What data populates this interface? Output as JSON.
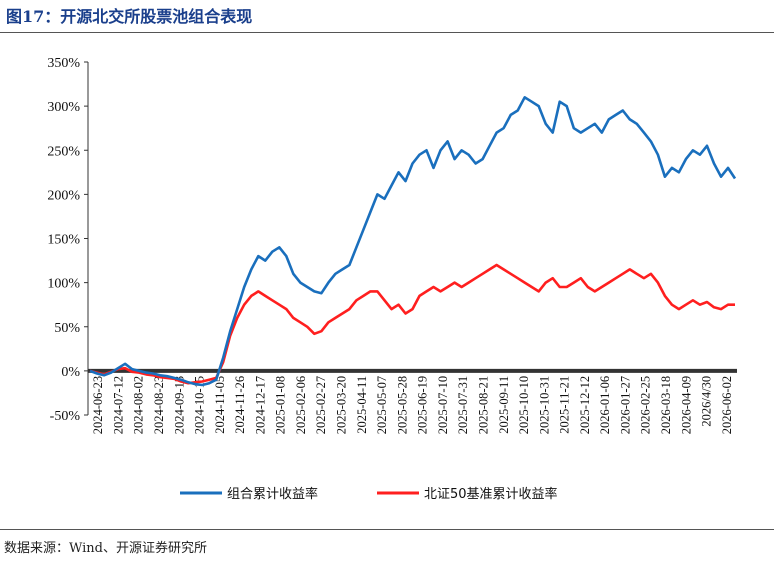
{
  "figure": {
    "title": "图17：开源北交所股票池组合表现",
    "source": "数据来源：Wind、开源证券研究所"
  },
  "colors": {
    "portfolio": "#1a6fbd",
    "index": "#ff1f1f",
    "title": "#1a3f8c"
  },
  "chart_data": {
    "type": "line",
    "title": "图17：开源北交所股票池组合表现",
    "xlabel": "",
    "ylabel": "",
    "ylim": [
      -50,
      350
    ],
    "y_ticks": [
      "350%",
      "300%",
      "250%",
      "200%",
      "150%",
      "100%",
      "50%",
      "0%",
      "-50%"
    ],
    "y_tick_values": [
      350,
      300,
      250,
      200,
      150,
      100,
      50,
      0,
      -50
    ],
    "x_ticks": [
      "2024-06-23",
      "2024-07-12",
      "2024-08-02",
      "2024-08-23",
      "2024-09-13",
      "2024-10-15",
      "2024-11-05",
      "2024-11-26",
      "2024-12-17",
      "2025-01-08",
      "2025-02-06",
      "2025-02-27",
      "2025-03-20",
      "2025-04-11",
      "2025-05-07",
      "2025-05-28",
      "2025-06-19",
      "2025-07-10",
      "2025-07-31",
      "2025-08-21",
      "2025-09-11",
      "2025-10-10",
      "2025-10-31",
      "2025-11-21",
      "2025-12-12",
      "2026-01-06",
      "2026-01-27",
      "2026-02-25",
      "2026-03-18",
      "2026-04-09",
      "2026/4/30",
      "2026-06-02"
    ],
    "grid": false,
    "legend": "bottom",
    "series": [
      {
        "name": "组合累计收益率",
        "values": [
          0,
          -3,
          -5,
          -2,
          3,
          8,
          2,
          0,
          -2,
          -3,
          -5,
          -6,
          -8,
          -10,
          -13,
          -15,
          -16,
          -14,
          -10,
          15,
          45,
          70,
          95,
          115,
          130,
          125,
          135,
          140,
          130,
          110,
          100,
          95,
          90,
          88,
          100,
          110,
          115,
          120,
          140,
          160,
          180,
          200,
          195,
          210,
          225,
          215,
          235,
          245,
          250,
          230,
          250,
          260,
          240,
          250,
          245,
          235,
          240,
          255,
          270,
          275,
          290,
          295,
          310,
          305,
          300,
          280,
          270,
          305,
          300,
          275,
          270,
          275,
          280,
          270,
          285,
          290,
          295,
          285,
          280,
          270,
          260,
          245,
          220,
          230,
          225,
          240,
          250,
          245,
          255,
          235,
          220,
          230,
          218
        ]
      },
      {
        "name": "北证50基准累计收益率",
        "values": [
          0,
          -2,
          -4,
          -1,
          2,
          3,
          -1,
          -2,
          -4,
          -5,
          -7,
          -8,
          -9,
          -12,
          -14,
          -13,
          -12,
          -10,
          -8,
          10,
          40,
          60,
          75,
          85,
          90,
          85,
          80,
          75,
          70,
          60,
          55,
          50,
          42,
          45,
          55,
          60,
          65,
          70,
          80,
          85,
          90,
          90,
          80,
          70,
          75,
          65,
          70,
          85,
          90,
          95,
          90,
          95,
          100,
          95,
          100,
          105,
          110,
          115,
          120,
          115,
          110,
          105,
          100,
          95,
          90,
          100,
          105,
          95,
          95,
          100,
          105,
          95,
          90,
          95,
          100,
          105,
          110,
          115,
          110,
          105,
          110,
          100,
          85,
          75,
          70,
          75,
          80,
          75,
          78,
          72,
          70,
          75,
          75
        ]
      }
    ]
  },
  "legend": {
    "portfolio_label": "组合累计收益率",
    "index_label": "北证50基准累计收益率"
  }
}
